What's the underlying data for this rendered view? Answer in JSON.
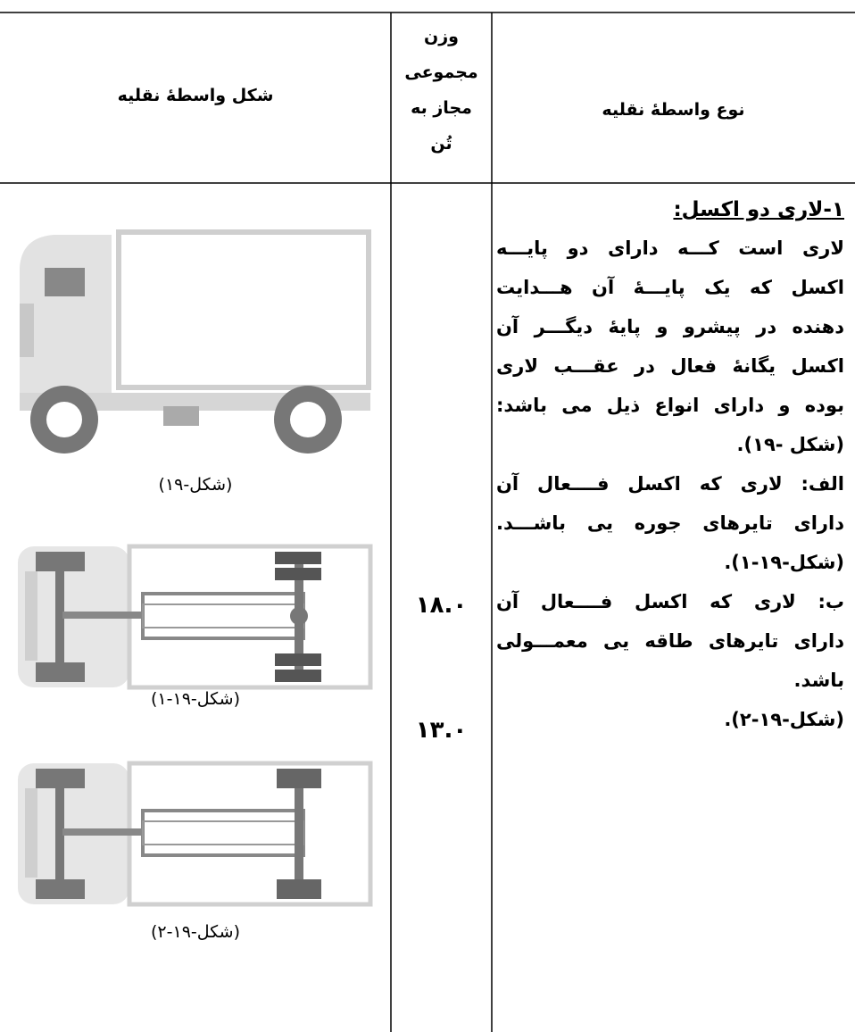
{
  "table": {
    "headers": {
      "shape": "شکل واسطهٔ نقلیه",
      "weight": [
        "وزن",
        "مجموعی",
        "مجاز به",
        "تُن"
      ],
      "type": "نوع واسطهٔ نقلیه"
    },
    "description": {
      "heading": "۱-لاری دو اکسل:",
      "lines": [
        "لاری است کـــه دارای دو پایـــه",
        "اکسل که یک پایـــهٔ آن هـــدایت",
        "دهنده در پیشرو و پایهٔ دیگـــر آن",
        "اکسل یگانهٔ فعال در عقـــب لاری",
        "بوده و دارای انواع ذیل می باشد:",
        "(شکل -۱۹).",
        "الف: لاری که اکسل فــــعال آن",
        "دارای تایرهای جوره یی باشـــد.",
        "(شکل-۱۹-۱).",
        "ب: لاری که اکسل فــــعال آن",
        "دارای تایرهای طاقه یی معمـــولی",
        "باشد.",
        "(شکل-۱۹-۲)."
      ]
    },
    "weights": [
      "۱۸.۰",
      "۱۳.۰"
    ],
    "captions": [
      "(شکل-۱۹)",
      "(شکل-۱۹-۱)",
      "(شکل-۱۹-۲)"
    ]
  }
}
